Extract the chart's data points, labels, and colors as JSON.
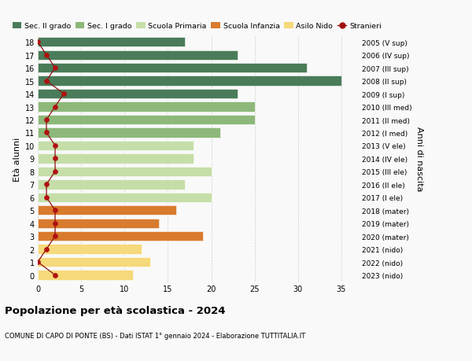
{
  "ages": [
    18,
    17,
    16,
    15,
    14,
    13,
    12,
    11,
    10,
    9,
    8,
    7,
    6,
    5,
    4,
    3,
    2,
    1,
    0
  ],
  "labels_right": [
    "2005 (V sup)",
    "2006 (IV sup)",
    "2007 (III sup)",
    "2008 (II sup)",
    "2009 (I sup)",
    "2010 (III med)",
    "2011 (II med)",
    "2012 (I med)",
    "2013 (V ele)",
    "2014 (IV ele)",
    "2015 (III ele)",
    "2016 (II ele)",
    "2017 (I ele)",
    "2018 (mater)",
    "2019 (mater)",
    "2020 (mater)",
    "2021 (nido)",
    "2022 (nido)",
    "2023 (nido)"
  ],
  "bar_values": [
    17,
    23,
    31,
    35,
    23,
    25,
    25,
    21,
    18,
    18,
    20,
    17,
    20,
    16,
    14,
    19,
    12,
    13,
    11
  ],
  "bar_colors": [
    "#4a7c59",
    "#4a7c59",
    "#4a7c59",
    "#4a7c59",
    "#4a7c59",
    "#8db87a",
    "#8db87a",
    "#8db87a",
    "#c5dea8",
    "#c5dea8",
    "#c5dea8",
    "#c5dea8",
    "#c5dea8",
    "#d97b2e",
    "#d97b2e",
    "#d97b2e",
    "#f5d97a",
    "#f5d97a",
    "#f5d97a"
  ],
  "stranieri_values": [
    0,
    1,
    2,
    1,
    3,
    2,
    1,
    1,
    2,
    2,
    2,
    1,
    1,
    2,
    2,
    2,
    1,
    0,
    2
  ],
  "legend_labels": [
    "Sec. II grado",
    "Sec. I grado",
    "Scuola Primaria",
    "Scuola Infanzia",
    "Asilo Nido",
    "Stranieri"
  ],
  "legend_colors": [
    "#4a7c59",
    "#8db87a",
    "#c5dea8",
    "#d97b2e",
    "#f5d97a",
    "#a01010"
  ],
  "ylabel_left": "Età alunni",
  "ylabel_right": "Anni di nascita",
  "title": "Popolazione per età scolastica - 2024",
  "subtitle": "COMUNE DI CAPO DI PONTE (BS) - Dati ISTAT 1° gennaio 2024 - Elaborazione TUTTITALIA.IT",
  "xlim": [
    0,
    37
  ],
  "xticks": [
    0,
    5,
    10,
    15,
    20,
    25,
    30,
    35
  ],
  "background_color": "#f9f9f9",
  "grid_color": "#d0d0d0"
}
